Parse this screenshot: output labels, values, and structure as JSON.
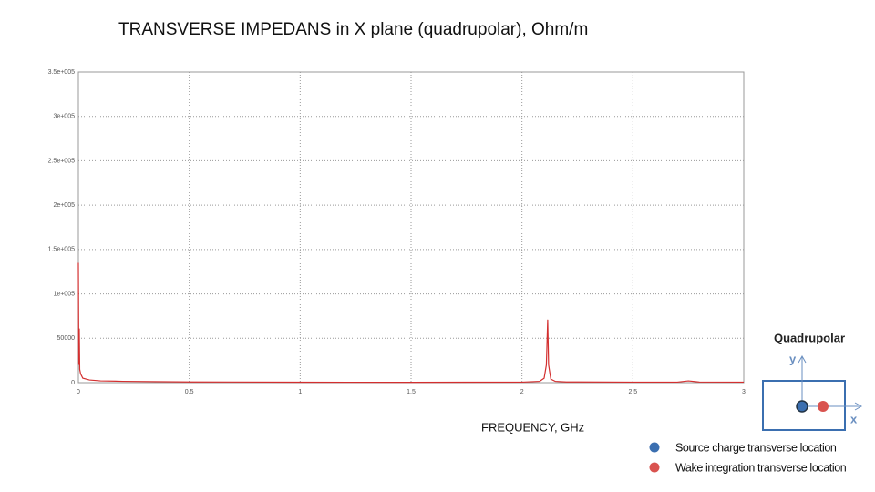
{
  "chart_data": {
    "type": "line",
    "title": "TRANSVERSE IMPEDANS in X plane (quadrupolar), Ohm/m",
    "x_label": "FREQUENCY, GHz",
    "x": [
      0,
      0.002,
      0.004,
      0.006,
      0.01,
      0.02,
      0.05,
      0.1,
      0.2,
      0.5,
      1,
      1.5,
      2,
      2.08,
      2.1,
      2.11,
      2.116,
      2.12,
      2.13,
      2.15,
      2.2,
      2.5,
      2.7,
      2.75,
      2.8,
      3
    ],
    "series": [
      {
        "color": "#d32f2f",
        "values": [
          135000,
          20000,
          61000,
          15000,
          10000,
          5000,
          3000,
          2000,
          1500,
          800,
          500,
          400,
          600,
          1500,
          5000,
          20000,
          71000,
          20000,
          4000,
          1500,
          800,
          600,
          600,
          2000,
          700,
          600
        ]
      }
    ],
    "xlim": [
      0,
      3
    ],
    "xticks": [
      0,
      0.5,
      1,
      1.5,
      2,
      2.5,
      3
    ],
    "ylim": [
      0,
      350000
    ],
    "yticks": [
      0,
      50000,
      {
        "value": 100000,
        "label": "1e+005"
      },
      {
        "value": 150000,
        "label": "1.5e+005"
      },
      {
        "value": 200000,
        "label": "2e+005"
      },
      {
        "value": 250000,
        "label": "2.5e+005"
      },
      {
        "value": 300000,
        "label": "3e+005"
      },
      {
        "value": 350000,
        "label": "3.5e+005"
      }
    ],
    "grid": true
  },
  "inset": {
    "title": "Quadrupolar",
    "y_label": "y",
    "x_label": "x",
    "legend": [
      {
        "name": "Source charge transverse location",
        "color": "#3b6fb0"
      },
      {
        "name": "Wake integration transverse location",
        "color": "#d9534f"
      }
    ]
  }
}
